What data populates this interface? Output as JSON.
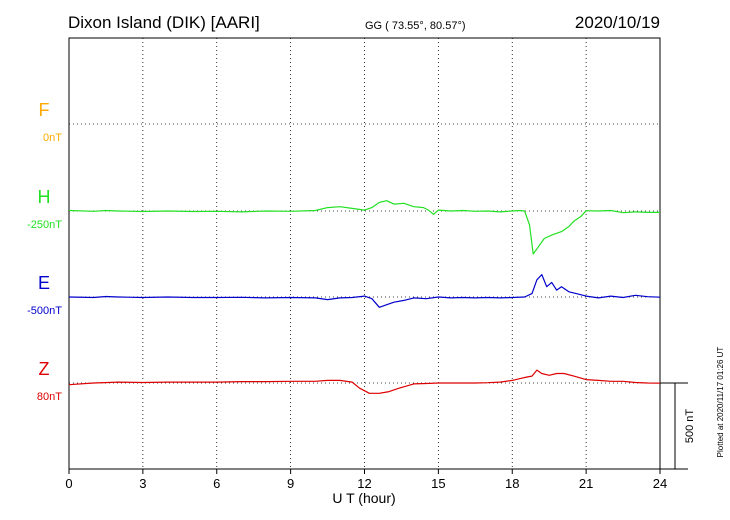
{
  "header": {
    "station": "Dixon Island (DIK)  [AARI]",
    "coords": "GG ( 73.55°,  80.57°)",
    "date": "2020/10/19"
  },
  "footer": {
    "plotted": "Plotted at 2020/11/17 01:26 UT",
    "scale_bar": "500 nT"
  },
  "chart_data": {
    "type": "line",
    "xlabel": "U T (hour)",
    "xlim": [
      0,
      24
    ],
    "xticks": [
      0,
      3,
      6,
      9,
      12,
      15,
      18,
      21,
      24
    ],
    "grid": true,
    "scale_bar_nT": 500,
    "series": [
      {
        "name": "F",
        "baseline_label": "0nT",
        "color": "#ffaa00",
        "points": []
      },
      {
        "name": "H",
        "baseline_label": "-250nT",
        "color": "#22e022",
        "points": [
          [
            0,
            3
          ],
          [
            1,
            -2
          ],
          [
            1.5,
            3
          ],
          [
            2,
            0
          ],
          [
            3,
            -3
          ],
          [
            4,
            0
          ],
          [
            5,
            -3
          ],
          [
            6,
            -2
          ],
          [
            7,
            -5
          ],
          [
            8,
            0
          ],
          [
            9,
            -2
          ],
          [
            10,
            3
          ],
          [
            10.5,
            20
          ],
          [
            11,
            25
          ],
          [
            11.5,
            15
          ],
          [
            12,
            5
          ],
          [
            12.3,
            20
          ],
          [
            12.6,
            50
          ],
          [
            12.9,
            60
          ],
          [
            13.2,
            40
          ],
          [
            13.6,
            45
          ],
          [
            14,
            25
          ],
          [
            14.4,
            20
          ],
          [
            14.6,
            5
          ],
          [
            14.8,
            -20
          ],
          [
            15,
            5
          ],
          [
            15.5,
            0
          ],
          [
            16,
            3
          ],
          [
            16.5,
            -2
          ],
          [
            17,
            0
          ],
          [
            17.5,
            -5
          ],
          [
            18,
            0
          ],
          [
            18.3,
            3
          ],
          [
            18.5,
            0
          ],
          [
            18.7,
            -80
          ],
          [
            18.85,
            -250
          ],
          [
            19.0,
            -220
          ],
          [
            19.3,
            -160
          ],
          [
            19.6,
            -140
          ],
          [
            20,
            -120
          ],
          [
            20.3,
            -90
          ],
          [
            20.5,
            -60
          ],
          [
            20.8,
            -30
          ],
          [
            21,
            2
          ],
          [
            21.5,
            0
          ],
          [
            22,
            3
          ],
          [
            22.5,
            -10
          ],
          [
            23,
            -5
          ],
          [
            23.5,
            -8
          ],
          [
            24,
            -8
          ]
        ]
      },
      {
        "name": "E",
        "baseline_label": "-500nT",
        "color": "#0000cc",
        "points": [
          [
            0,
            0
          ],
          [
            1,
            -3
          ],
          [
            1.5,
            3
          ],
          [
            2,
            0
          ],
          [
            3,
            -3
          ],
          [
            4,
            0
          ],
          [
            5,
            -3
          ],
          [
            6,
            -3
          ],
          [
            7,
            -2
          ],
          [
            8,
            -5
          ],
          [
            9,
            -3
          ],
          [
            10,
            -5
          ],
          [
            10.5,
            -15
          ],
          [
            11,
            -5
          ],
          [
            11.5,
            -3
          ],
          [
            12,
            5
          ],
          [
            12.3,
            -10
          ],
          [
            12.6,
            -60
          ],
          [
            12.9,
            -45
          ],
          [
            13.2,
            -30
          ],
          [
            13.6,
            -20
          ],
          [
            14,
            -5
          ],
          [
            14.5,
            -10
          ],
          [
            15,
            0
          ],
          [
            15.5,
            -5
          ],
          [
            16,
            -3
          ],
          [
            16.5,
            -5
          ],
          [
            17,
            -3
          ],
          [
            17.5,
            -5
          ],
          [
            18,
            -3
          ],
          [
            18.5,
            0
          ],
          [
            18.8,
            20
          ],
          [
            19.0,
            100
          ],
          [
            19.2,
            130
          ],
          [
            19.4,
            60
          ],
          [
            19.6,
            85
          ],
          [
            19.8,
            40
          ],
          [
            20,
            60
          ],
          [
            20.3,
            30
          ],
          [
            20.6,
            20
          ],
          [
            21,
            5
          ],
          [
            21.5,
            -5
          ],
          [
            22,
            5
          ],
          [
            22.5,
            -3
          ],
          [
            23,
            10
          ],
          [
            23.5,
            2
          ],
          [
            24,
            -1
          ]
        ]
      },
      {
        "name": "Z",
        "baseline_label": "80nT",
        "color": "#dd0000",
        "points": [
          [
            0,
            -10
          ],
          [
            1,
            0
          ],
          [
            2,
            5
          ],
          [
            3,
            3
          ],
          [
            4,
            5
          ],
          [
            5,
            5
          ],
          [
            6,
            5
          ],
          [
            7,
            8
          ],
          [
            8,
            8
          ],
          [
            9,
            10
          ],
          [
            10,
            10
          ],
          [
            10.5,
            15
          ],
          [
            11,
            15
          ],
          [
            11.5,
            5
          ],
          [
            11.8,
            -30
          ],
          [
            12.2,
            -60
          ],
          [
            12.6,
            -60
          ],
          [
            13,
            -50
          ],
          [
            13.4,
            -30
          ],
          [
            14,
            -5
          ],
          [
            14.5,
            -3
          ],
          [
            15,
            0
          ],
          [
            15.5,
            0
          ],
          [
            16,
            0
          ],
          [
            16.5,
            0
          ],
          [
            17,
            2
          ],
          [
            17.5,
            5
          ],
          [
            18,
            15
          ],
          [
            18.3,
            25
          ],
          [
            18.6,
            35
          ],
          [
            18.8,
            40
          ],
          [
            19,
            75
          ],
          [
            19.2,
            55
          ],
          [
            19.5,
            45
          ],
          [
            19.8,
            55
          ],
          [
            20.1,
            55
          ],
          [
            20.5,
            40
          ],
          [
            21,
            20
          ],
          [
            21.5,
            15
          ],
          [
            22,
            10
          ],
          [
            22.5,
            10
          ],
          [
            23,
            3
          ],
          [
            23.5,
            0
          ],
          [
            24,
            -1
          ]
        ]
      }
    ]
  }
}
